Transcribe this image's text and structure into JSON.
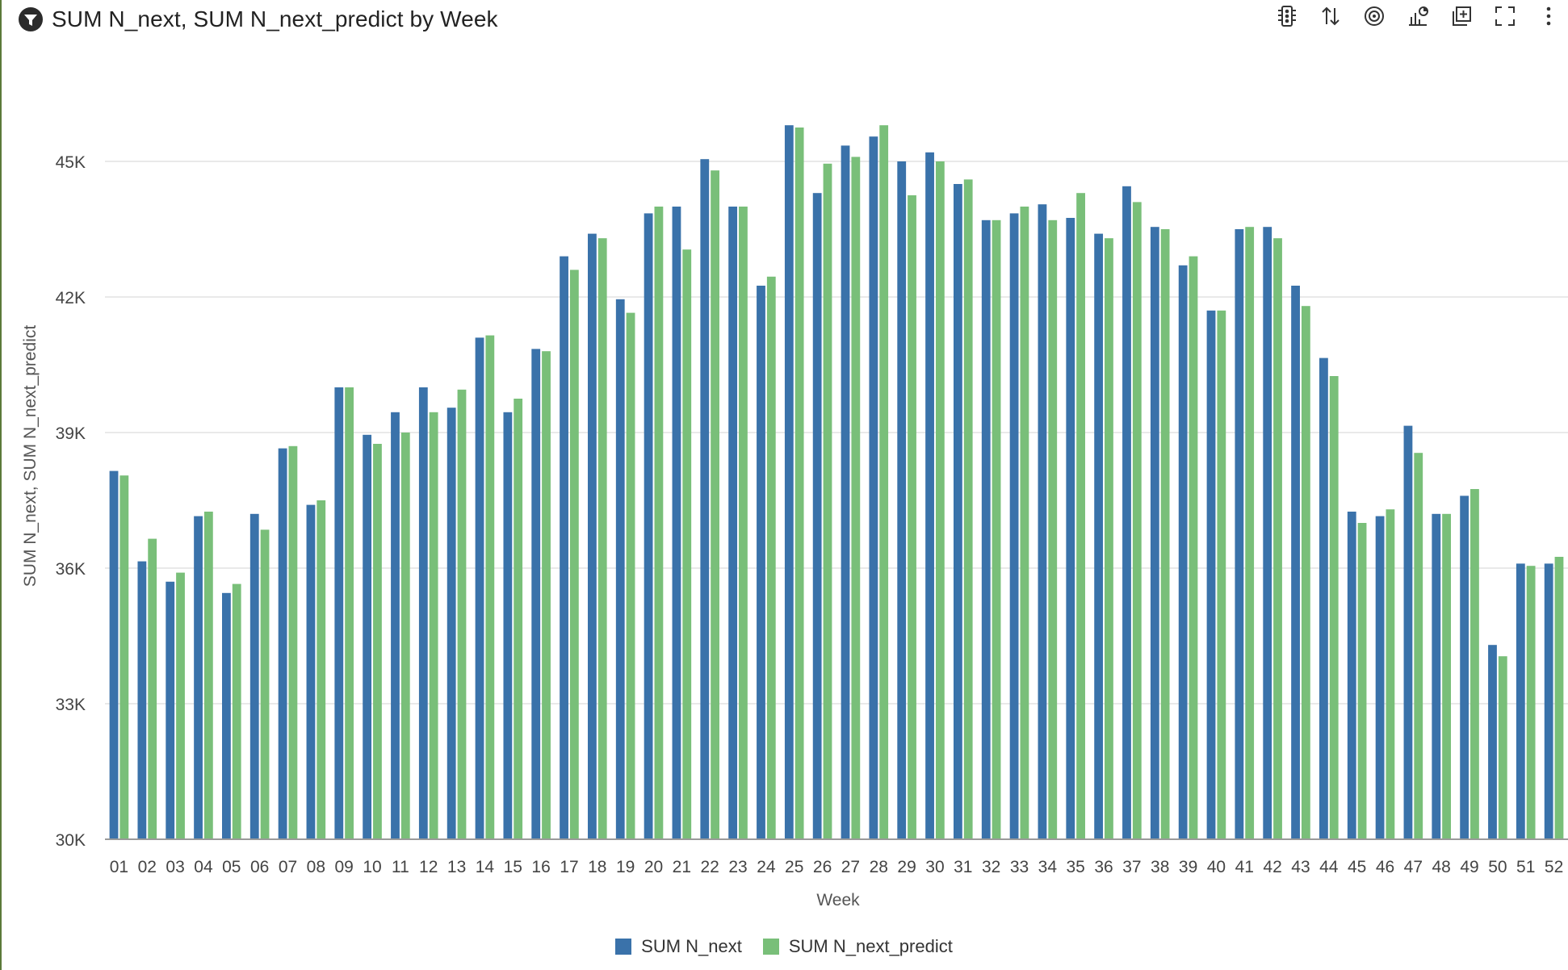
{
  "header": {
    "title": "SUM N_next, SUM N_next_predict by Week"
  },
  "toolbar": {
    "icons": [
      "traffic-light-icon",
      "sort-icon",
      "target-icon",
      "chart-options-icon",
      "add-panel-icon",
      "fullscreen-icon",
      "more-icon"
    ]
  },
  "colors": {
    "series1": "#3a72aa",
    "series2": "#79bf79",
    "grid": "#e2e2e2",
    "axis": "#9a9a9a"
  },
  "chart_data": {
    "type": "bar",
    "title": "SUM N_next, SUM N_next_predict by Week",
    "xlabel": "Week",
    "ylabel": "SUM N_next, SUM N_next_predict",
    "ylim": [
      30000,
      46500
    ],
    "yticks": [
      30000,
      33000,
      36000,
      39000,
      42000,
      45000
    ],
    "ytick_labels": [
      "30K",
      "33K",
      "36K",
      "39K",
      "42K",
      "45K"
    ],
    "grid": true,
    "legend": "bottom-center",
    "categories": [
      "01",
      "02",
      "03",
      "04",
      "05",
      "06",
      "07",
      "08",
      "09",
      "10",
      "11",
      "12",
      "13",
      "14",
      "15",
      "16",
      "17",
      "18",
      "19",
      "20",
      "21",
      "22",
      "23",
      "24",
      "25",
      "26",
      "27",
      "28",
      "29",
      "30",
      "31",
      "32",
      "33",
      "34",
      "35",
      "36",
      "37",
      "38",
      "39",
      "40",
      "41",
      "42",
      "43",
      "44",
      "45",
      "46",
      "47",
      "48",
      "49",
      "50",
      "51",
      "52"
    ],
    "series": [
      {
        "name": "SUM N_next",
        "values": [
          38150,
          36150,
          35700,
          37150,
          35450,
          37200,
          38650,
          37400,
          40000,
          38950,
          39450,
          40000,
          39550,
          41100,
          39450,
          40850,
          42900,
          43400,
          41950,
          43850,
          44000,
          45050,
          44000,
          42250,
          45800,
          44300,
          45350,
          45550,
          45000,
          45200,
          44500,
          43700,
          43850,
          44050,
          43750,
          43400,
          44450,
          43550,
          42700,
          41700,
          43500,
          43550,
          42250,
          40650,
          37250,
          37150,
          39150,
          37200,
          37600,
          34300,
          36100,
          36100
        ]
      },
      {
        "name": "SUM N_next_predict",
        "values": [
          38050,
          36650,
          35900,
          37250,
          35650,
          36850,
          38700,
          37500,
          40000,
          38750,
          39000,
          39450,
          39950,
          41150,
          39750,
          40800,
          42600,
          43300,
          41650,
          44000,
          43050,
          44800,
          44000,
          42450,
          45750,
          44950,
          45100,
          45800,
          44250,
          45000,
          44600,
          43700,
          44000,
          43700,
          44300,
          43300,
          44100,
          43500,
          42900,
          41700,
          43550,
          43300,
          41800,
          40250,
          37000,
          37300,
          38550,
          37200,
          37750,
          34050,
          36050,
          36250
        ]
      }
    ]
  },
  "legend": {
    "items": [
      "SUM N_next",
      "SUM N_next_predict"
    ]
  }
}
